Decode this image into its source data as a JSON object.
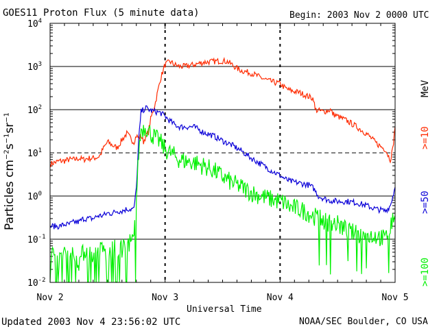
{
  "header": {
    "title": "GOES11 Proton Flux (5 minute data)",
    "begin": "Begin: 2003 Nov 2 0000 UTC"
  },
  "footer": {
    "updated": "Updated 2003 Nov  4 23:56:02 UTC",
    "source": "NOAA/SEC Boulder, CO USA"
  },
  "chart_data": {
    "type": "line",
    "title": "GOES11 Proton Flux (5 minute data)",
    "xlabel": "Universal Time",
    "ylabel": "Particles cm⁻²s⁻¹sr⁻¹",
    "y_scale": "log",
    "ylim": [
      0.01,
      10000
    ],
    "xlim": [
      0,
      72
    ],
    "x_unit": "hours since 2003 Nov 2 0000 UTC",
    "x_ticks": [
      {
        "x": 0,
        "label": "Nov 2"
      },
      {
        "x": 24,
        "label": "Nov 3"
      },
      {
        "x": 48,
        "label": "Nov 4"
      },
      {
        "x": 72,
        "label": "Nov 5"
      }
    ],
    "y_ticks": [
      {
        "v": 0.01,
        "base": "10",
        "exp": "-2"
      },
      {
        "v": 0.1,
        "base": "10",
        "exp": "-1"
      },
      {
        "v": 1,
        "base": "10",
        "exp": "0"
      },
      {
        "v": 10,
        "base": "10",
        "exp": "1"
      },
      {
        "v": 100,
        "base": "10",
        "exp": "2"
      },
      {
        "v": 1000,
        "base": "10",
        "exp": "3"
      },
      {
        "v": 10000,
        "base": "10",
        "exp": "4"
      }
    ],
    "reference_line": {
      "value": 10,
      "style": "dashed"
    },
    "units_label": "MeV",
    "series": [
      {
        "name": ">=10",
        "color": "#ff2a00",
        "x": [
          0,
          1,
          2,
          3,
          4,
          5,
          6,
          7,
          8,
          9,
          10,
          10.5,
          11,
          12,
          13,
          14,
          15,
          16,
          16.5,
          17,
          17.5,
          18,
          18.5,
          19,
          19.5,
          20,
          20.5,
          21,
          22,
          23,
          24,
          25,
          26,
          27,
          28,
          30,
          32,
          34,
          36,
          37,
          38,
          39,
          40,
          42,
          44,
          46,
          48,
          49,
          50,
          52,
          54,
          55,
          55.3,
          56,
          57,
          58,
          58.5,
          59,
          60,
          62,
          64,
          66,
          67,
          68,
          69,
          70,
          70.5,
          71,
          71.5,
          72
        ],
        "y": [
          5.5,
          6,
          6.5,
          6.5,
          7,
          7,
          7.5,
          7,
          7.5,
          7.5,
          8,
          9,
          12,
          18,
          15,
          13,
          20,
          28,
          24,
          20,
          18,
          25,
          22,
          25,
          18,
          25,
          30,
          60,
          150,
          500,
          1100,
          1300,
          1100,
          1000,
          1000,
          1100,
          1250,
          1300,
          1350,
          1300,
          1100,
          900,
          800,
          700,
          550,
          450,
          400,
          320,
          280,
          250,
          200,
          180,
          100,
          95,
          90,
          95,
          100,
          80,
          70,
          55,
          40,
          28,
          22,
          17,
          14,
          12,
          9,
          7,
          12,
          40
        ]
      },
      {
        "name": ">=50",
        "color": "#0a00d8",
        "x": [
          0,
          1,
          2,
          3,
          4,
          5,
          6,
          7,
          8,
          9,
          10,
          11,
          12,
          13,
          14,
          15,
          16,
          17,
          17.5,
          18,
          18.5,
          19,
          20,
          21,
          22,
          23,
          24,
          25,
          26,
          27,
          28,
          30,
          32,
          34,
          36,
          38,
          40,
          42,
          44,
          46,
          48,
          49,
          50,
          52,
          54,
          55,
          56,
          58,
          60,
          62,
          64,
          66,
          68,
          70,
          71,
          72
        ],
        "y": [
          0.2,
          0.2,
          0.2,
          0.22,
          0.22,
          0.25,
          0.25,
          0.3,
          0.3,
          0.3,
          0.35,
          0.35,
          0.4,
          0.4,
          0.45,
          0.45,
          0.5,
          0.5,
          0.5,
          1.5,
          20,
          90,
          110,
          95,
          90,
          85,
          70,
          55,
          45,
          40,
          40,
          40,
          30,
          25,
          19,
          15,
          11,
          7.5,
          5.5,
          4,
          3,
          2.5,
          2.2,
          2,
          1.8,
          1.5,
          1,
          0.8,
          0.75,
          0.75,
          0.7,
          0.6,
          0.5,
          0.45,
          0.6,
          1.6
        ]
      },
      {
        "name": ">=100",
        "color": "#00f000",
        "x": [
          0,
          1,
          2,
          3,
          4,
          5,
          6,
          7,
          8,
          9,
          10,
          11,
          12,
          13,
          14,
          15,
          16,
          17,
          17.5,
          18,
          18.5,
          19,
          20,
          21,
          22,
          23,
          24,
          25,
          26,
          27,
          28,
          30,
          32,
          34,
          36,
          38,
          40,
          42,
          44,
          46,
          48,
          49,
          50,
          52,
          54,
          56,
          58,
          60,
          62,
          64,
          66,
          68,
          70,
          71,
          72
        ],
        "y": [
          0.04,
          0.05,
          0.03,
          0.06,
          0.04,
          0.05,
          0.03,
          0.05,
          0.06,
          0.04,
          0.05,
          0.06,
          0.04,
          0.07,
          0.05,
          0.06,
          0.08,
          0.09,
          0.1,
          0.8,
          10,
          35,
          40,
          28,
          22,
          18,
          12,
          10,
          8.5,
          7,
          6.5,
          6,
          5,
          4,
          2.8,
          2,
          1.6,
          1.2,
          1,
          0.85,
          0.75,
          0.7,
          0.55,
          0.5,
          0.4,
          0.3,
          0.25,
          0.22,
          0.16,
          0.13,
          0.12,
          0.12,
          0.1,
          0.2,
          0.35
        ]
      }
    ]
  }
}
